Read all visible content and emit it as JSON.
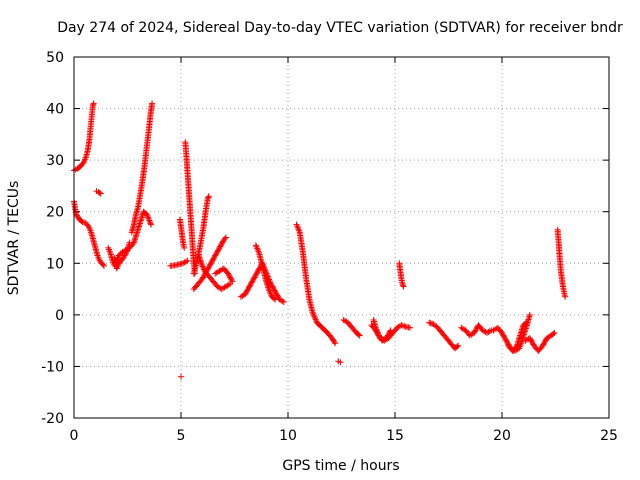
{
  "chart_data": {
    "type": "scatter",
    "title": "Day 274 of 2024, Sidereal Day-to-day VTEC variation (SDTVAR) for receiver bndr",
    "xlabel": "GPS time / hours",
    "ylabel": "SDTVAR / TECUs",
    "xlim": [
      0,
      25
    ],
    "ylim": [
      -20,
      50
    ],
    "xticks": [
      0,
      5,
      10,
      15,
      20,
      25
    ],
    "xtick_labels": [
      "0",
      "5",
      "10",
      "15",
      "20",
      "25"
    ],
    "yticks": [
      -20,
      -10,
      0,
      10,
      20,
      30,
      40,
      50
    ],
    "ytick_labels": [
      "-20",
      "-10",
      "0",
      "10",
      "20",
      "30",
      "40",
      "50"
    ],
    "grid": true,
    "marker": "plus",
    "color": "#ff0000",
    "series": [
      {
        "name": "SDTVAR",
        "segments": [
          [
            [
              0.0,
              28.0
            ],
            [
              0.15,
              28.3
            ],
            [
              0.3,
              28.8
            ],
            [
              0.45,
              29.5
            ],
            [
              0.55,
              30.5
            ],
            [
              0.65,
              32.0
            ],
            [
              0.72,
              34.0
            ],
            [
              0.78,
              36.5
            ],
            [
              0.83,
              38.5
            ],
            [
              0.88,
              40.5
            ],
            [
              0.92,
              41.0
            ]
          ],
          [
            [
              0.0,
              22.0
            ],
            [
              0.1,
              19.5
            ],
            [
              0.25,
              18.5
            ],
            [
              0.4,
              18.0
            ],
            [
              0.55,
              17.8
            ],
            [
              0.7,
              17.0
            ],
            [
              0.8,
              16.0
            ],
            [
              0.9,
              14.5
            ],
            [
              1.0,
              13.0
            ],
            [
              1.1,
              11.5
            ],
            [
              1.2,
              10.5
            ],
            [
              1.3,
              10.0
            ],
            [
              1.4,
              9.5
            ]
          ],
          [
            [
              1.05,
              24.0
            ],
            [
              1.15,
              23.8
            ],
            [
              1.25,
              23.5
            ]
          ],
          [
            [
              1.6,
              13.0
            ],
            [
              1.7,
              12.0
            ],
            [
              1.8,
              10.5
            ],
            [
              1.9,
              9.5
            ],
            [
              2.0,
              10.5
            ],
            [
              2.1,
              11.5
            ],
            [
              2.2,
              12.0
            ],
            [
              2.4,
              12.5
            ],
            [
              2.6,
              13.0
            ],
            [
              2.8,
              14.0
            ],
            [
              2.95,
              16.0
            ],
            [
              3.1,
              18.0
            ],
            [
              3.25,
              20.0
            ],
            [
              3.4,
              19.5
            ],
            [
              3.55,
              18.0
            ],
            [
              3.6,
              17.5
            ]
          ],
          [
            [
              1.9,
              11.0
            ],
            [
              2.0,
              9.0
            ],
            [
              2.1,
              10.0
            ],
            [
              2.3,
              11.0
            ],
            [
              2.5,
              12.5
            ],
            [
              2.6,
              14.0
            ]
          ],
          [
            [
              2.7,
              16.0
            ],
            [
              2.8,
              17.5
            ],
            [
              2.9,
              19.5
            ],
            [
              3.0,
              21.0
            ],
            [
              3.1,
              23.5
            ],
            [
              3.2,
              26.0
            ],
            [
              3.3,
              29.0
            ],
            [
              3.4,
              32.5
            ],
            [
              3.5,
              36.0
            ],
            [
              3.58,
              39.0
            ],
            [
              3.65,
              41.0
            ]
          ],
          [
            [
              4.5,
              9.5
            ],
            [
              4.7,
              9.6
            ],
            [
              4.9,
              9.8
            ],
            [
              5.1,
              10.0
            ],
            [
              5.3,
              10.5
            ]
          ],
          [
            [
              4.95,
              18.5
            ],
            [
              5.0,
              17.0
            ],
            [
              5.05,
              15.5
            ],
            [
              5.1,
              14.0
            ],
            [
              5.15,
              13.0
            ]
          ],
          [
            [
              5.2,
              33.5
            ],
            [
              5.25,
              31.0
            ],
            [
              5.3,
              28.0
            ],
            [
              5.35,
              25.0
            ],
            [
              5.4,
              22.0
            ],
            [
              5.45,
              19.0
            ],
            [
              5.5,
              16.0
            ],
            [
              5.55,
              13.0
            ],
            [
              5.6,
              10.0
            ],
            [
              5.65,
              8.0
            ]
          ],
          [
            [
              5.6,
              5.0
            ],
            [
              5.8,
              6.0
            ],
            [
              6.0,
              7.0
            ],
            [
              6.2,
              8.5
            ],
            [
              6.4,
              10.0
            ],
            [
              6.6,
              11.5
            ],
            [
              6.8,
              13.0
            ],
            [
              7.0,
              14.5
            ],
            [
              7.1,
              15.0
            ]
          ],
          [
            [
              5.6,
              8.0
            ],
            [
              5.75,
              10.5
            ],
            [
              5.9,
              13.5
            ],
            [
              6.05,
              17.0
            ],
            [
              6.15,
              20.0
            ],
            [
              6.25,
              22.5
            ],
            [
              6.3,
              23.0
            ]
          ],
          [
            [
              5.8,
              12.0
            ],
            [
              5.95,
              10.0
            ],
            [
              6.1,
              8.5
            ],
            [
              6.3,
              7.5
            ],
            [
              6.5,
              6.5
            ],
            [
              6.7,
              5.5
            ],
            [
              6.9,
              5.0
            ],
            [
              7.1,
              5.5
            ],
            [
              7.3,
              6.0
            ]
          ],
          [
            [
              6.6,
              8.0
            ],
            [
              6.8,
              8.5
            ],
            [
              7.0,
              9.0
            ],
            [
              7.2,
              8.0
            ],
            [
              7.4,
              6.5
            ]
          ],
          [
            [
              7.8,
              3.5
            ],
            [
              8.0,
              4.0
            ],
            [
              8.2,
              5.5
            ],
            [
              8.4,
              7.0
            ],
            [
              8.6,
              8.5
            ],
            [
              8.8,
              10.0
            ],
            [
              9.0,
              8.0
            ],
            [
              9.2,
              6.0
            ],
            [
              9.4,
              4.5
            ],
            [
              9.6,
              3.0
            ],
            [
              9.8,
              2.5
            ]
          ],
          [
            [
              8.5,
              13.5
            ],
            [
              8.65,
              12.0
            ],
            [
              8.8,
              9.5
            ],
            [
              8.95,
              7.0
            ],
            [
              9.1,
              5.0
            ],
            [
              9.25,
              3.5
            ],
            [
              9.4,
              3.0
            ]
          ],
          [
            [
              10.4,
              17.5
            ],
            [
              10.55,
              16.0
            ],
            [
              10.7,
              12.0
            ],
            [
              10.85,
              7.0
            ],
            [
              11.0,
              3.0
            ],
            [
              11.15,
              0.5
            ],
            [
              11.35,
              -1.5
            ],
            [
              11.6,
              -2.5
            ],
            [
              11.85,
              -3.5
            ],
            [
              12.05,
              -4.5
            ],
            [
              12.2,
              -5.5
            ]
          ],
          [
            [
              12.35,
              -9.0
            ],
            [
              12.45,
              -9.2
            ]
          ],
          [
            [
              12.6,
              -1.0
            ],
            [
              12.8,
              -1.5
            ],
            [
              13.0,
              -2.5
            ],
            [
              13.2,
              -3.5
            ],
            [
              13.35,
              -4.0
            ]
          ],
          [
            [
              13.9,
              -2.0
            ],
            [
              14.1,
              -3.0
            ],
            [
              14.3,
              -4.5
            ],
            [
              14.5,
              -5.0
            ],
            [
              14.7,
              -4.5
            ],
            [
              14.9,
              -3.5
            ],
            [
              15.1,
              -2.5
            ],
            [
              15.3,
              -2.0
            ],
            [
              15.5,
              -2.3
            ],
            [
              15.7,
              -2.5
            ]
          ],
          [
            [
              14.0,
              -1.0
            ],
            [
              14.1,
              -2.5
            ],
            [
              14.25,
              -4.0
            ],
            [
              14.4,
              -5.0
            ],
            [
              14.6,
              -4.5
            ],
            [
              14.8,
              -3.0
            ]
          ],
          [
            [
              15.2,
              10.0
            ],
            [
              15.25,
              8.5
            ],
            [
              15.3,
              7.0
            ],
            [
              15.35,
              6.0
            ],
            [
              15.4,
              5.5
            ]
          ],
          [
            [
              16.6,
              -1.5
            ],
            [
              16.8,
              -1.8
            ],
            [
              17.0,
              -2.5
            ],
            [
              17.2,
              -3.5
            ],
            [
              17.4,
              -4.5
            ],
            [
              17.6,
              -5.5
            ],
            [
              17.8,
              -6.5
            ],
            [
              17.95,
              -6.0
            ]
          ],
          [
            [
              18.1,
              -2.5
            ],
            [
              18.3,
              -3.0
            ],
            [
              18.5,
              -4.0
            ],
            [
              18.7,
              -3.5
            ],
            [
              18.9,
              -2.0
            ],
            [
              19.1,
              -3.0
            ],
            [
              19.3,
              -3.5
            ],
            [
              19.5,
              -3.0
            ]
          ],
          [
            [
              19.6,
              -3.0
            ],
            [
              19.8,
              -2.5
            ],
            [
              20.0,
              -3.5
            ],
            [
              20.2,
              -5.0
            ],
            [
              20.4,
              -6.5
            ],
            [
              20.6,
              -7.0
            ],
            [
              20.8,
              -6.5
            ],
            [
              20.9,
              -5.5
            ],
            [
              21.05,
              -3.5
            ],
            [
              21.2,
              -1.5
            ],
            [
              21.3,
              0.0
            ]
          ],
          [
            [
              20.3,
              -6.0
            ],
            [
              20.5,
              -7.0
            ],
            [
              20.7,
              -6.0
            ],
            [
              20.85,
              -4.0
            ],
            [
              21.0,
              -2.0
            ],
            [
              21.15,
              -1.5
            ]
          ],
          [
            [
              21.1,
              -5.0
            ],
            [
              21.3,
              -4.5
            ],
            [
              21.5,
              -6.0
            ],
            [
              21.7,
              -7.0
            ],
            [
              21.9,
              -6.0
            ],
            [
              22.1,
              -4.5
            ],
            [
              22.3,
              -4.0
            ],
            [
              22.45,
              -3.5
            ]
          ],
          [
            [
              22.6,
              16.5
            ],
            [
              22.65,
              14.0
            ],
            [
              22.7,
              11.0
            ],
            [
              22.75,
              8.5
            ],
            [
              22.8,
              7.0
            ],
            [
              22.85,
              5.5
            ],
            [
              22.9,
              4.5
            ],
            [
              22.95,
              3.5
            ]
          ]
        ],
        "outliers": [
          [
            5.0,
            -12.0
          ]
        ]
      }
    ]
  }
}
